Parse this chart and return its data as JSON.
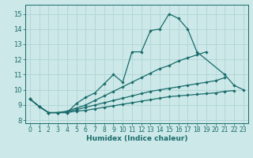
{
  "xlabel": "Humidex (Indice chaleur)",
  "ylabel": "",
  "xlim": [
    -0.5,
    23.5
  ],
  "ylim": [
    7.8,
    15.6
  ],
  "yticks": [
    8,
    9,
    10,
    11,
    12,
    13,
    14,
    15
  ],
  "xticks": [
    0,
    1,
    2,
    3,
    4,
    5,
    6,
    7,
    8,
    9,
    10,
    11,
    12,
    13,
    14,
    15,
    16,
    17,
    18,
    19,
    20,
    21,
    22,
    23
  ],
  "bg_color": "#cce8e8",
  "line_color": "#1a6b6b",
  "grid_color": "#b0d4d4",
  "series": [
    [
      9.4,
      8.9,
      8.5,
      8.5,
      8.5,
      9.1,
      9.5,
      9.8,
      10.4,
      11.0,
      10.5,
      12.5,
      12.5,
      13.9,
      14.0,
      15.0,
      14.7,
      14.0,
      12.5,
      null,
      null,
      11.0,
      10.3,
      10.0
    ],
    [
      9.4,
      8.9,
      8.5,
      8.5,
      8.6,
      8.8,
      9.0,
      9.3,
      9.6,
      9.9,
      10.2,
      10.5,
      10.8,
      11.1,
      11.4,
      11.6,
      11.9,
      12.1,
      12.3,
      12.5,
      null,
      null,
      null,
      null
    ],
    [
      9.4,
      8.9,
      8.5,
      8.5,
      8.55,
      8.7,
      8.85,
      9.0,
      9.15,
      9.3,
      9.45,
      9.6,
      9.75,
      9.9,
      10.0,
      10.1,
      10.2,
      10.3,
      10.4,
      10.5,
      10.6,
      10.8,
      null,
      null
    ],
    [
      9.4,
      8.9,
      8.5,
      8.5,
      8.5,
      8.6,
      8.65,
      8.75,
      8.85,
      8.95,
      9.05,
      9.15,
      9.25,
      9.35,
      9.45,
      9.55,
      9.6,
      9.65,
      9.7,
      9.75,
      9.8,
      9.9,
      9.95,
      null
    ]
  ]
}
